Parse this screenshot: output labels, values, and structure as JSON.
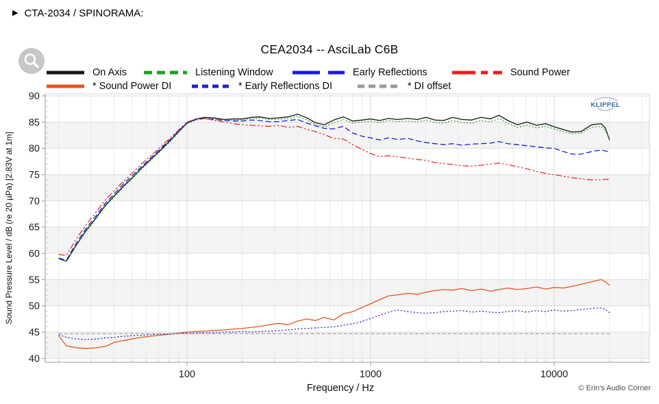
{
  "page": {
    "header": "CTA-2034 / SPINORAMA:",
    "header_arrow": "▶",
    "copyright": "© Erin's Audio Corner"
  },
  "chart": {
    "title": "CEA2034 -- AsciLab C6B",
    "xlabel": "Frequency / Hz",
    "ylabel": "Sound Pressure Level / dB (re 20 µPa)  [2.83V at 1m]",
    "watermark": "KLIPPEL",
    "x_tick_labels": [
      "100",
      "1000",
      "10000"
    ],
    "x_tick_values": [
      100,
      1000,
      10000
    ],
    "y_tick_values": [
      90,
      85,
      80,
      75,
      70,
      65,
      60,
      55,
      50,
      45,
      40
    ],
    "band_color": "#f4f4f4",
    "colors": {
      "on_axis": "#141414",
      "listening_window": "#1fa11f",
      "early_reflections": "#1a1ae6",
      "sound_power": "#ee1c1c",
      "sound_power_di": "#e8541c",
      "early_reflections_di": "#2222cc",
      "di_offset": "#9a9a9a"
    }
  },
  "legend": {
    "rows": [
      [
        {
          "label": "On Axis",
          "color": "#141414",
          "dash": ""
        },
        {
          "label": "Listening Window",
          "color": "#1fa11f",
          "dash": "12 7"
        },
        {
          "label": "Early Reflections",
          "color": "#1a1ae6",
          "dash": "40 12"
        },
        {
          "label": "Sound Power",
          "color": "#ee1c1c",
          "dash": "34 8 10 8"
        }
      ],
      [
        {
          "label": "* Sound Power DI",
          "color": "#e8541c",
          "dash": ""
        },
        {
          "label": "* Early Reflections DI",
          "color": "#2222cc",
          "dash": "9 6"
        },
        {
          "label": "* DI offset",
          "color": "#9a9a9a",
          "dash": "10 6"
        }
      ]
    ]
  },
  "chart_data": {
    "type": "line",
    "x_scale": "log",
    "title": "CEA2034 -- AsciLab C6B",
    "xlabel": "Frequency / Hz",
    "ylabel": "Sound Pressure Level / dB (re 20 µPa)  [2.83V at 1m]",
    "xlim": [
      16.9,
      33000
    ],
    "ylim": [
      39.2,
      90.4
    ],
    "grid": true,
    "legend_position": "top",
    "freqs": [
      20,
      22,
      25,
      28,
      32,
      36,
      40,
      45,
      50,
      56,
      63,
      71,
      80,
      90,
      100,
      112,
      125,
      140,
      160,
      180,
      200,
      224,
      250,
      280,
      315,
      355,
      400,
      450,
      500,
      560,
      630,
      710,
      800,
      900,
      1000,
      1120,
      1250,
      1400,
      1600,
      1800,
      2000,
      2240,
      2500,
      2800,
      3150,
      3550,
      4000,
      4500,
      5000,
      5600,
      6300,
      7100,
      8000,
      9000,
      10000,
      11200,
      12500,
      14000,
      16000,
      18000,
      19000,
      20000
    ],
    "series": [
      {
        "name": "On Axis",
        "color": "#141414",
        "dash": "",
        "width": 1.3,
        "values": [
          59.0,
          58.5,
          61.6,
          64.2,
          66.8,
          69.2,
          70.9,
          72.8,
          74.3,
          76.1,
          77.8,
          79.5,
          81.3,
          83.2,
          84.8,
          85.6,
          85.9,
          85.8,
          85.5,
          85.6,
          85.6,
          85.9,
          86.0,
          85.7,
          85.8,
          86.0,
          86.5,
          85.8,
          84.9,
          84.5,
          85.4,
          86.0,
          85.2,
          85.4,
          85.6,
          85.3,
          85.7,
          85.5,
          85.7,
          85.5,
          85.9,
          85.4,
          85.3,
          85.9,
          85.5,
          85.4,
          85.9,
          85.6,
          86.3,
          85.3,
          84.5,
          85.0,
          84.4,
          84.7,
          84.1,
          83.6,
          83.1,
          83.2,
          84.5,
          84.7,
          83.9,
          81.6
        ]
      },
      {
        "name": "Listening Window",
        "color": "#1fa11f",
        "dash": "2 2.6",
        "width": 1.2,
        "values": [
          59.0,
          58.5,
          61.5,
          64.0,
          66.6,
          69.0,
          70.7,
          72.6,
          74.1,
          75.9,
          77.6,
          79.3,
          81.1,
          83.0,
          84.7,
          85.4,
          85.7,
          85.6,
          85.3,
          85.4,
          85.4,
          85.7,
          85.8,
          85.5,
          85.5,
          85.7,
          86.1,
          85.4,
          84.5,
          84.1,
          84.9,
          85.5,
          84.8,
          85.0,
          85.2,
          84.9,
          85.3,
          85.1,
          85.2,
          85.0,
          85.4,
          84.9,
          84.8,
          85.3,
          84.9,
          84.8,
          85.3,
          85.0,
          85.7,
          84.8,
          84.0,
          84.4,
          83.9,
          84.2,
          83.7,
          83.2,
          82.8,
          82.9,
          84.0,
          84.2,
          83.4,
          81.9
        ]
      },
      {
        "name": "Early Reflections",
        "color": "#1a1ae6",
        "dash": "8 4",
        "width": 1.3,
        "values": [
          59.1,
          58.7,
          62.0,
          64.6,
          67.2,
          69.6,
          71.3,
          73.2,
          74.7,
          76.4,
          78.1,
          79.8,
          81.5,
          83.3,
          84.9,
          85.5,
          85.7,
          85.5,
          85.3,
          85.2,
          85.2,
          85.4,
          85.3,
          85.1,
          85.1,
          85.3,
          85.5,
          84.8,
          84.3,
          83.8,
          83.7,
          84.2,
          82.9,
          82.3,
          82.0,
          81.6,
          82.0,
          81.7,
          81.9,
          81.4,
          81.1,
          80.9,
          80.7,
          80.9,
          80.6,
          80.8,
          80.9,
          81.0,
          81.3,
          80.9,
          80.7,
          80.5,
          80.3,
          80.1,
          80.0,
          79.4,
          78.9,
          78.9,
          79.4,
          79.7,
          79.5,
          79.3
        ]
      },
      {
        "name": "Sound Power",
        "color": "#ee1c1c",
        "dash": "9 3 2.5 3 2.5 3",
        "width": 1.2,
        "values": [
          59.8,
          59.6,
          62.8,
          65.3,
          67.9,
          70.2,
          71.9,
          73.7,
          75.2,
          76.9,
          78.5,
          80.1,
          81.8,
          83.5,
          85.0,
          85.6,
          85.7,
          85.3,
          85.0,
          84.7,
          84.5,
          84.4,
          84.3,
          84.2,
          84.4,
          84.0,
          84.2,
          83.6,
          83.2,
          82.6,
          81.9,
          81.8,
          80.7,
          79.8,
          79.0,
          78.4,
          78.6,
          78.4,
          78.1,
          77.9,
          77.7,
          77.3,
          77.1,
          76.9,
          76.7,
          76.6,
          76.8,
          77.0,
          77.2,
          76.9,
          76.5,
          76.1,
          75.6,
          75.2,
          75.0,
          74.7,
          74.4,
          74.2,
          74.0,
          74.0,
          74.1,
          74.1
        ]
      },
      {
        "name": "* Sound Power DI",
        "color": "#e8541c",
        "dash": "",
        "width": 1.3,
        "values": [
          44.3,
          42.4,
          42.0,
          41.9,
          42.0,
          42.3,
          43.0,
          43.4,
          43.7,
          44.0,
          44.2,
          44.4,
          44.6,
          44.8,
          45.0,
          45.1,
          45.2,
          45.3,
          45.4,
          45.6,
          45.7,
          45.9,
          46.1,
          46.4,
          46.7,
          46.4,
          47.1,
          47.5,
          47.2,
          47.8,
          47.3,
          48.5,
          48.9,
          49.7,
          50.4,
          51.2,
          51.9,
          52.1,
          52.4,
          52.2,
          52.6,
          52.9,
          53.1,
          53.0,
          53.3,
          52.9,
          53.2,
          52.8,
          53.1,
          53.4,
          53.1,
          53.3,
          53.6,
          53.2,
          53.5,
          53.4,
          53.7,
          54.1,
          54.6,
          55.0,
          54.6,
          53.9
        ]
      },
      {
        "name": "* Early Reflections DI",
        "color": "#2222cc",
        "dash": "2.2 2.6",
        "width": 1.2,
        "values": [
          44.5,
          44.0,
          43.7,
          43.6,
          43.7,
          43.9,
          44.0,
          44.2,
          44.3,
          44.4,
          44.5,
          44.6,
          44.6,
          44.7,
          44.8,
          44.8,
          44.9,
          44.9,
          45.0,
          45.0,
          45.1,
          45.0,
          45.1,
          45.2,
          45.3,
          45.4,
          45.6,
          45.7,
          45.8,
          45.9,
          46.0,
          46.3,
          46.6,
          47.0,
          47.6,
          48.2,
          48.8,
          49.2,
          48.9,
          48.7,
          48.6,
          48.7,
          48.9,
          49.0,
          49.1,
          48.8,
          49.0,
          48.8,
          48.7,
          48.9,
          49.1,
          48.8,
          49.1,
          48.9,
          49.2,
          49.0,
          49.1,
          49.3,
          49.5,
          49.6,
          49.3,
          48.7
        ]
      },
      {
        "name": "* DI offset",
        "color": "#9a9a9a",
        "dash": "5 3",
        "width": 1.1,
        "constant": 44.7
      }
    ]
  }
}
